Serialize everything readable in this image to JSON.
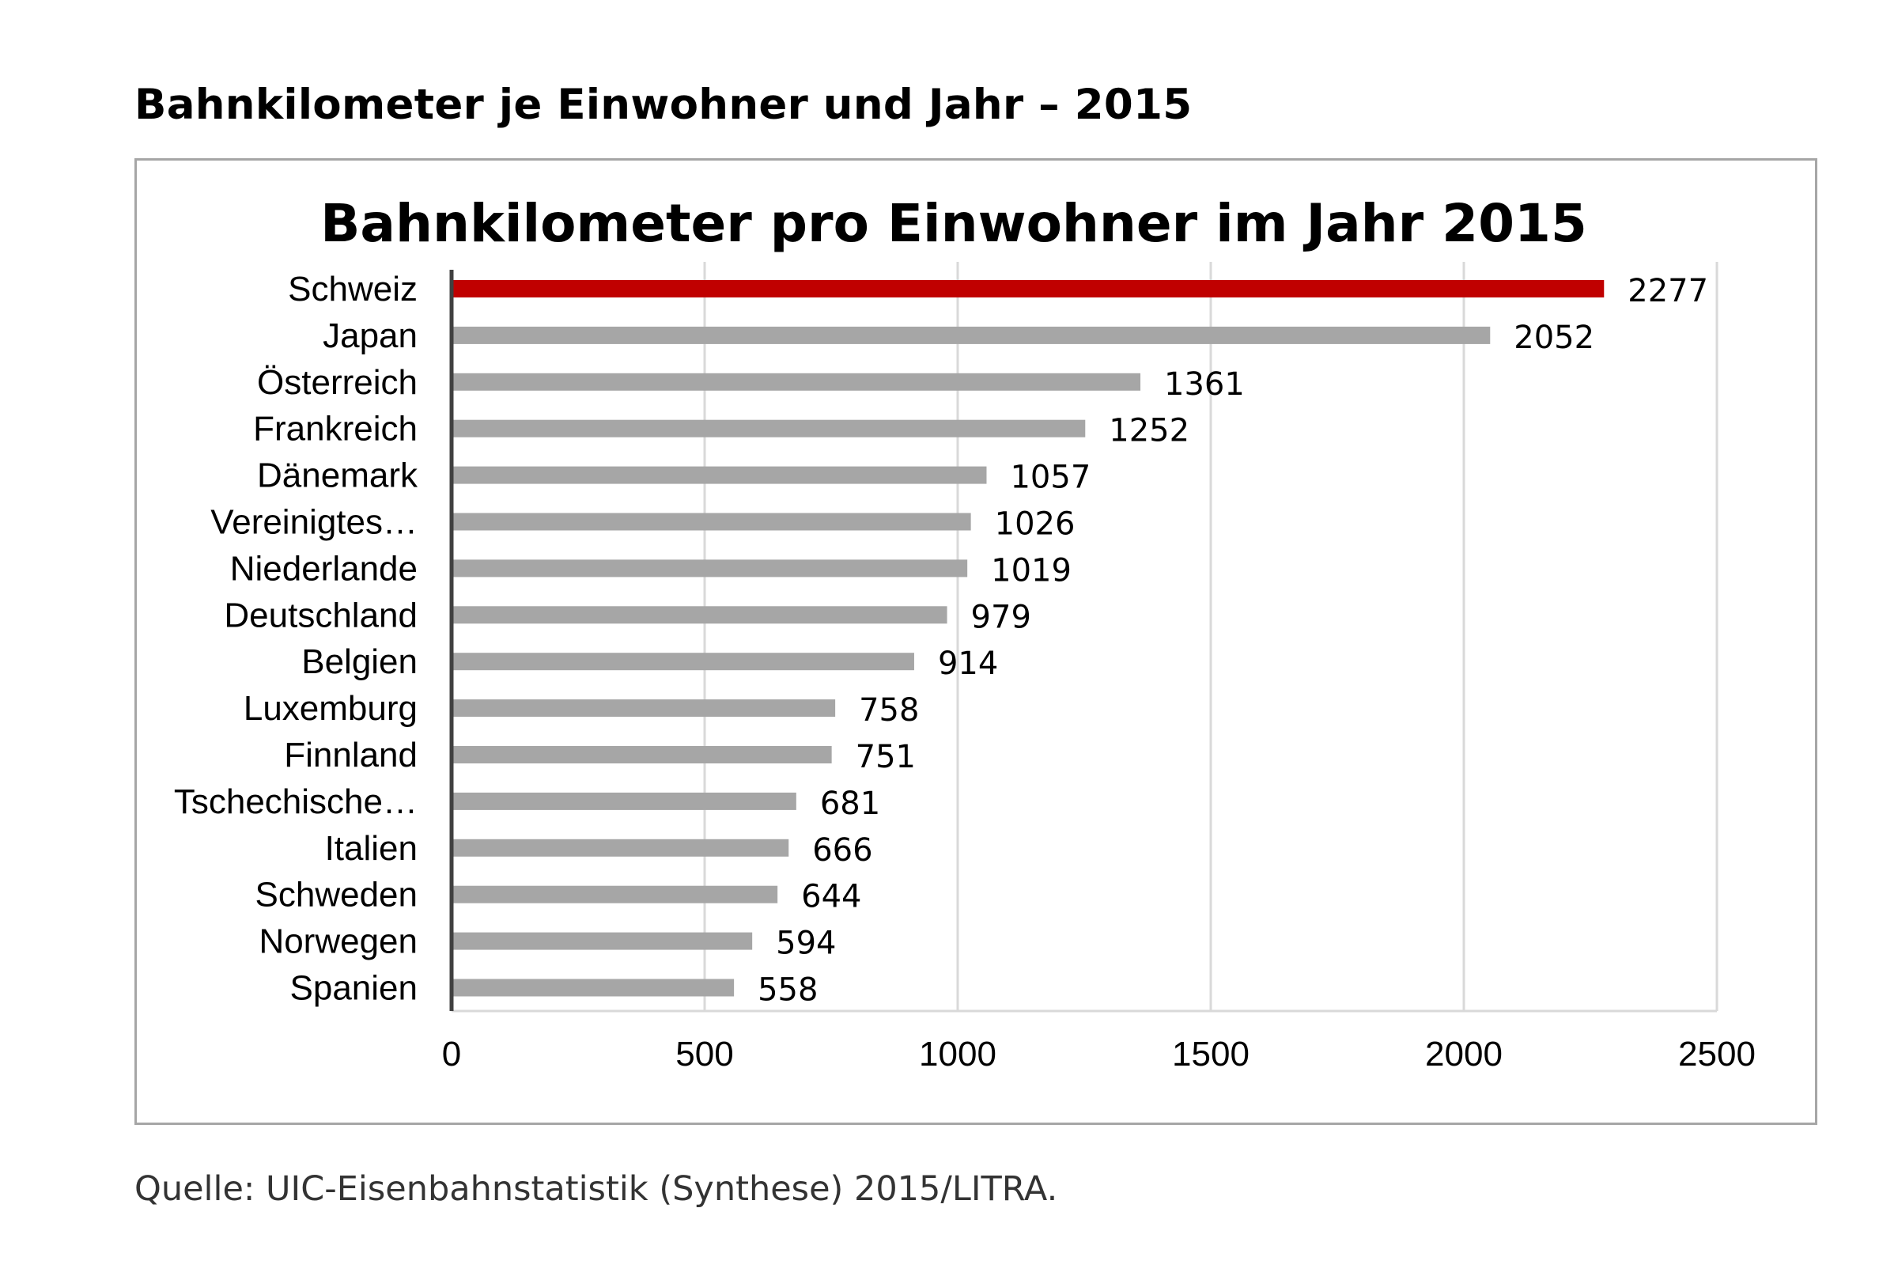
{
  "document": {
    "title": "Bahnkilometer je Einwohner und Jahr – 2015",
    "source": "Quelle: UIC-Eisenbahnstatistik (Synthese) 2015/LITRA."
  },
  "chart_data": {
    "type": "bar",
    "orientation": "horizontal",
    "title": "Bahnkilometer pro Einwohner im Jahr 2015",
    "xlabel": "",
    "ylabel": "",
    "xlim": [
      0,
      2500
    ],
    "xticks": [
      0,
      500,
      1000,
      1500,
      2000,
      2500
    ],
    "grid": true,
    "legend": "none",
    "colors": {
      "default": "#a6a6a6",
      "highlight": "#c00000"
    },
    "highlight_category": "Schweiz",
    "categories": [
      "Schweiz",
      "Japan",
      "Österreich",
      "Frankreich",
      "Dänemark",
      "Vereinigtes…",
      "Niederlande",
      "Deutschland",
      "Belgien",
      "Luxemburg",
      "Finnland",
      "Tschechische…",
      "Italien",
      "Schweden",
      "Norwegen",
      "Spanien"
    ],
    "values": [
      2277,
      2052,
      1361,
      1252,
      1057,
      1026,
      1019,
      979,
      914,
      758,
      751,
      681,
      666,
      644,
      594,
      558
    ]
  }
}
